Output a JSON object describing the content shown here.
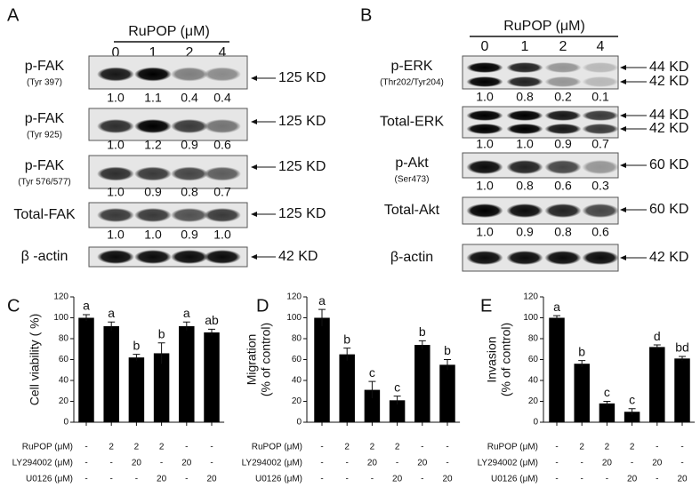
{
  "blots": [
    {
      "panel": "A",
      "treatment": "RuPOP (μM)",
      "lanes": [
        "0",
        "1",
        "2",
        "4"
      ],
      "rows": [
        {
          "name": "p-FAK",
          "site": "(Tyr 397)",
          "markers": [
            "125 KD"
          ],
          "quant": [
            "1.0",
            "1.1",
            "0.4",
            "0.4"
          ]
        },
        {
          "name": "p-FAK",
          "site": "(Tyr 925)",
          "markers": [
            "125 KD"
          ],
          "quant": [
            "1.0",
            "1.2",
            "0.9",
            "0.6"
          ]
        },
        {
          "name": "p-FAK",
          "site": "(Tyr 576/577)",
          "markers": [
            "125 KD"
          ],
          "quant": [
            "1.0",
            "0.9",
            "0.8",
            "0.7"
          ]
        },
        {
          "name": "Total-FAK",
          "markers": [
            "125 KD"
          ],
          "quant": [
            "1.0",
            "1.0",
            "0.9",
            "1.0"
          ]
        },
        {
          "name": "β -actin",
          "markers": [
            "42 KD"
          ]
        }
      ]
    },
    {
      "panel": "B",
      "treatment": "RuPOP (μM)",
      "lanes": [
        "0",
        "1",
        "2",
        "4"
      ],
      "rows": [
        {
          "name": "p-ERK",
          "site": "(Thr202/Tyr204)",
          "markers": [
            "44 KD",
            "42 KD"
          ],
          "quant": [
            "1.0",
            "0.8",
            "0.2",
            "0.1"
          ]
        },
        {
          "name": "Total-ERK",
          "markers": [
            "44 KD",
            "42 KD"
          ],
          "quant": [
            "1.0",
            "1.0",
            "0.9",
            "0.7"
          ]
        },
        {
          "name": "p-Akt",
          "site": "(Ser473)",
          "markers": [
            "60 KD"
          ],
          "quant": [
            "1.0",
            "0.8",
            "0.6",
            "0.3"
          ]
        },
        {
          "name": "Total-Akt",
          "markers": [
            "60 KD"
          ],
          "quant": [
            "1.0",
            "0.9",
            "0.8",
            "0.6"
          ]
        },
        {
          "name": "β-actin",
          "markers": [
            "42 KD"
          ]
        }
      ]
    }
  ],
  "chart_data": [
    {
      "type": "bar",
      "panel": "C",
      "y_label": "Cell viability ( %)",
      "color": "#000000",
      "values": [
        100,
        92,
        62,
        66,
        92,
        86
      ],
      "errors": [
        3,
        4,
        3,
        10,
        4,
        3
      ],
      "letters": [
        "a",
        "a",
        "b",
        "b",
        "a",
        "ab"
      ],
      "ylim": [
        0,
        120
      ],
      "yticks": [
        0,
        20,
        40,
        60,
        80,
        100,
        120
      ],
      "treatments": [
        {
          "name": "RuPOP (μM)",
          "values": [
            "-",
            "2",
            "2",
            "2",
            "-",
            "-"
          ]
        },
        {
          "name": "LY294002 (μM)",
          "values": [
            "-",
            "-",
            "20",
            "-",
            "20",
            "-"
          ]
        },
        {
          "name": "U0126 (μM)",
          "values": [
            "-",
            "-",
            "-",
            "20",
            "-",
            "20"
          ]
        }
      ]
    },
    {
      "type": "bar",
      "panel": "D",
      "y_label": [
        "Migration",
        "(% of control)"
      ],
      "color": "#000000",
      "values": [
        100,
        65,
        31,
        21,
        74,
        55
      ],
      "errors": [
        8,
        6,
        8,
        4,
        4,
        5
      ],
      "letters": [
        "a",
        "b",
        "c",
        "c",
        "b",
        "b"
      ],
      "ylim": [
        0,
        120
      ],
      "yticks": [
        0,
        20,
        40,
        60,
        80,
        100,
        120
      ],
      "treatments": [
        {
          "name": "RuPOP (μM)",
          "values": [
            "-",
            "2",
            "2",
            "2",
            "-",
            "-"
          ]
        },
        {
          "name": "LY294002 (μM)",
          "values": [
            "-",
            "-",
            "20",
            "-",
            "20",
            "-"
          ]
        },
        {
          "name": "U0126 (μM)",
          "values": [
            "-",
            "-",
            "-",
            "20",
            "-",
            "20"
          ]
        }
      ]
    },
    {
      "type": "bar",
      "panel": "E",
      "y_label": [
        "Invasion",
        "(% of control)"
      ],
      "color": "#000000",
      "values": [
        100,
        56,
        18,
        10,
        72,
        61
      ],
      "errors": [
        2,
        3,
        2,
        3,
        2,
        2
      ],
      "letters": [
        "a",
        "b",
        "c",
        "c",
        "d",
        "bd"
      ],
      "ylim": [
        0,
        120
      ],
      "yticks": [
        0,
        20,
        40,
        60,
        80,
        100,
        120
      ],
      "treatments": [
        {
          "name": "RuPOP (μM)",
          "values": [
            "-",
            "2",
            "2",
            "2",
            "-",
            "-"
          ]
        },
        {
          "name": "LY294002 (μM)",
          "values": [
            "-",
            "-",
            "20",
            "-",
            "20",
            "-"
          ]
        },
        {
          "name": "U0126 (μM)",
          "values": [
            "-",
            "-",
            "-",
            "20",
            "-",
            "20"
          ]
        }
      ]
    }
  ]
}
